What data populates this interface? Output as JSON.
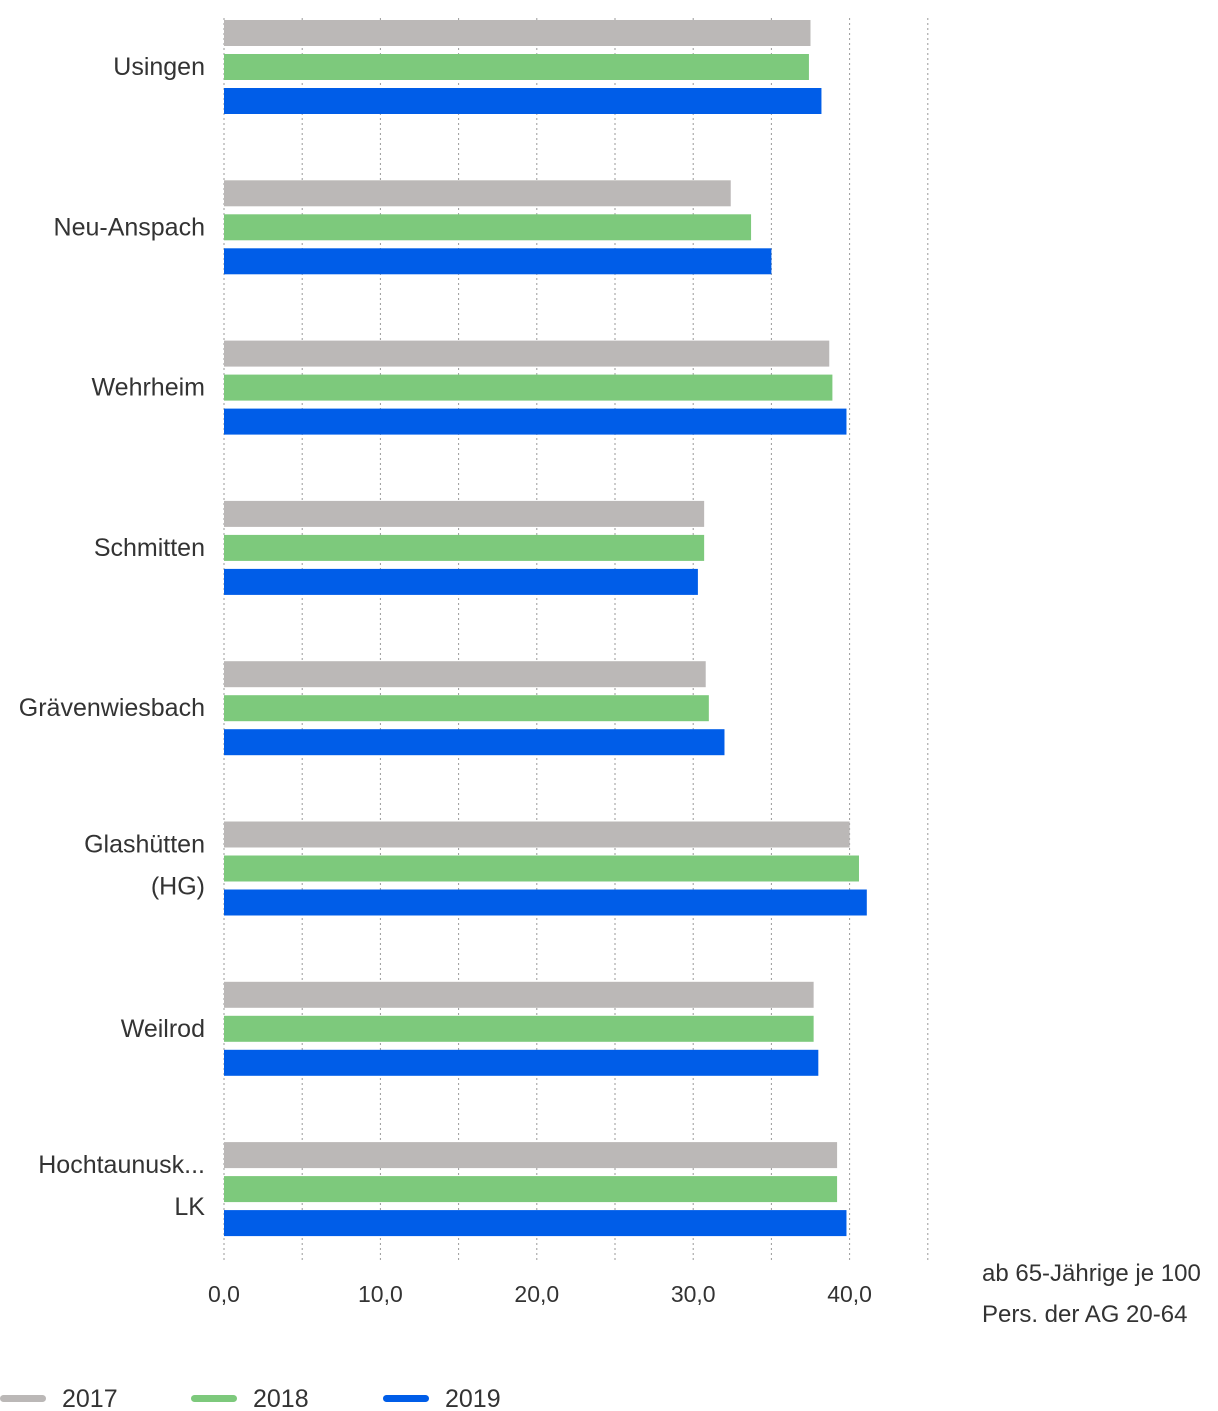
{
  "chart_data": {
    "type": "bar",
    "orientation": "horizontal",
    "categories": [
      [
        "Usingen"
      ],
      [
        "Neu-Anspach"
      ],
      [
        "Wehrheim"
      ],
      [
        "Schmitten"
      ],
      [
        "Grävenwiesbach"
      ],
      [
        "Glashütten",
        "(HG)"
      ],
      [
        "Weilrod"
      ],
      [
        "Hochtaunusk...",
        "LK"
      ]
    ],
    "series": [
      {
        "name": "2017",
        "color": "#bbb8b7",
        "values": [
          37.5,
          32.4,
          38.7,
          30.7,
          30.8,
          40.0,
          37.7,
          39.2
        ]
      },
      {
        "name": "2018",
        "color": "#7dc97c",
        "values": [
          37.4,
          33.7,
          38.9,
          30.7,
          31.0,
          40.6,
          37.7,
          39.2
        ]
      },
      {
        "name": "2019",
        "color": "#005de8",
        "values": [
          38.2,
          35.0,
          39.8,
          30.3,
          32.0,
          41.1,
          38.0,
          39.8
        ]
      }
    ],
    "xticks": [
      "0,0",
      "10,0",
      "20,0",
      "30,0",
      "40,0"
    ],
    "xlim": [
      0,
      45
    ],
    "xlabel": [
      "ab 65-Jährige je 100",
      "Pers. der AG 20-64"
    ],
    "grid": true,
    "legend_position": "bottom-left"
  }
}
